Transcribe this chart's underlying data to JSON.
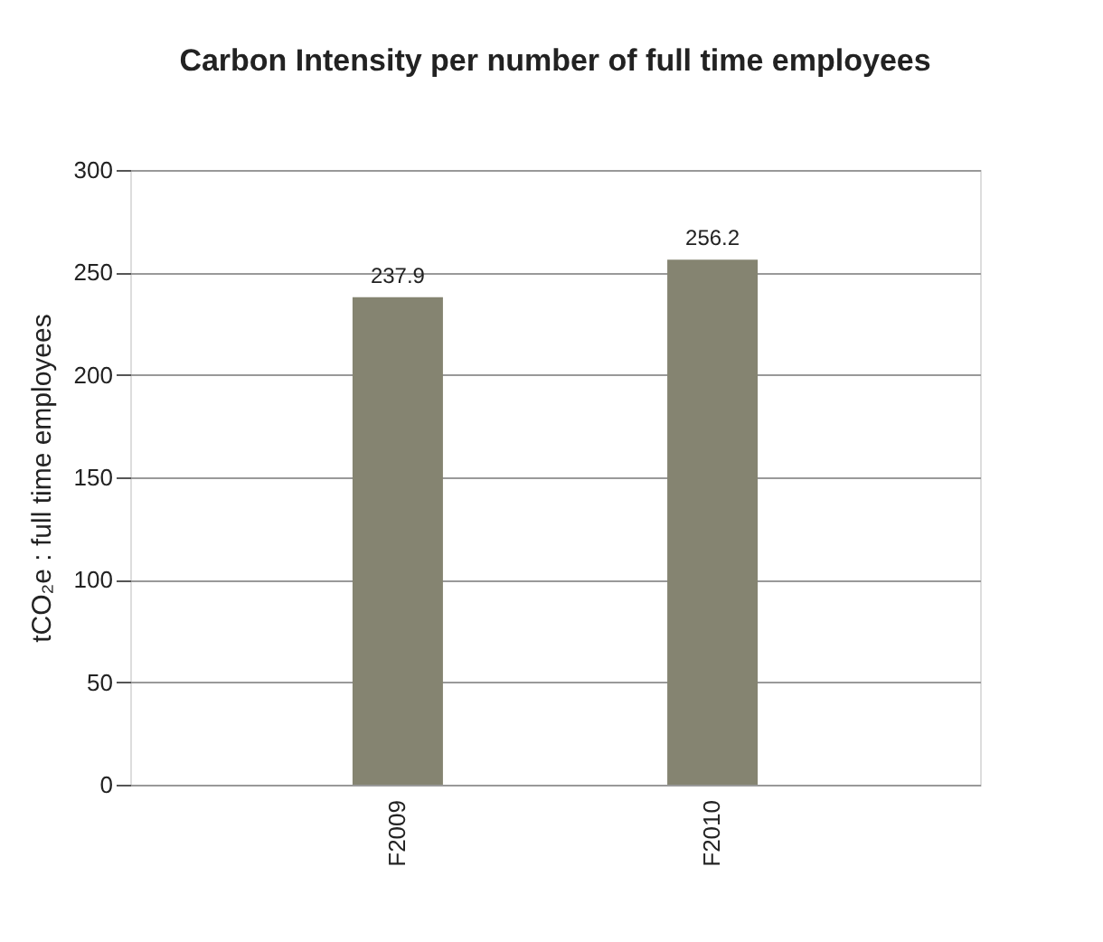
{
  "chart_data": {
    "type": "bar",
    "title": "Carbon Intensity per number of full time employees",
    "ylabel": "tCO₂e : full time employees",
    "categories": [
      "F2009",
      "F2010"
    ],
    "series": [
      {
        "color": "#858471",
        "values": [
          237.9,
          256.2
        ]
      }
    ],
    "ylim": [
      0,
      300
    ],
    "yticks": [
      0,
      50,
      100,
      150,
      200,
      250,
      300
    ],
    "grid": "y",
    "data_labels": true
  }
}
